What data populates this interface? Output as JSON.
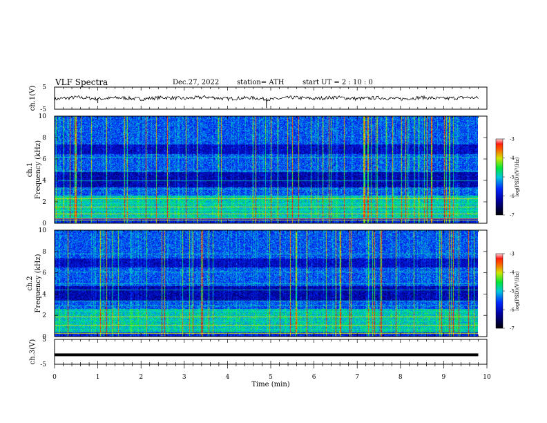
{
  "header": {
    "title": "VLF  Spectra",
    "date": "Dec.27, 2022",
    "station": "station= ATH",
    "start": "start  UT  =   2  : 10 : 0"
  },
  "chart_data": [
    {
      "type": "line",
      "panel": "ch1-waveform",
      "ylabel": "ch.1(V)",
      "ylim": [
        -5,
        5
      ],
      "yticks": [
        "5",
        "-5"
      ],
      "x": [
        0,
        0.5,
        1,
        1.5,
        2,
        2.5,
        3,
        3.5,
        4,
        4.5,
        5,
        5.5,
        6,
        6.5,
        7,
        7.5,
        8,
        8.5,
        9,
        9.5,
        9.8
      ],
      "y": [
        -0.5,
        0.4,
        -0.3,
        0.2,
        -0.4,
        0.3,
        -0.2,
        0.5,
        -0.3,
        0.2,
        -0.6,
        0.3,
        -0.2,
        0.4,
        -0.3,
        0.2,
        -0.4,
        0.3,
        -0.2,
        0.3,
        0.1
      ]
    },
    {
      "type": "heatmap",
      "panel": "ch1-spectrogram",
      "ylabel": "ch.1\nFrequency (kHz)",
      "ylim": [
        0,
        10
      ],
      "yticks": [
        "0",
        "2",
        "4",
        "6",
        "8",
        "10"
      ],
      "colorbar": {
        "label": "log(PSD)(V²/Hz)",
        "range": [
          -7,
          -3
        ],
        "ticks": [
          "-3",
          "-4",
          "-5",
          "-6",
          "-7"
        ]
      }
    },
    {
      "type": "heatmap",
      "panel": "ch2-spectrogram",
      "ylabel": "ch.2\nFrequency (kHz)",
      "ylim": [
        0,
        10
      ],
      "yticks": [
        "0",
        "2",
        "4",
        "6",
        "8",
        "10"
      ],
      "colorbar": {
        "label": "log(PSD)(V²/Hz)",
        "range": [
          -7,
          -3
        ],
        "ticks": [
          "-3",
          "-4",
          "-5",
          "-6",
          "-7"
        ]
      }
    },
    {
      "type": "line",
      "panel": "ch3-waveform",
      "ylabel": "ch.3(V)",
      "ylim": [
        -5,
        5
      ],
      "yticks": [
        "5",
        "-5"
      ],
      "x": [
        0,
        9.8
      ],
      "y": [
        -1.2,
        -1.2
      ]
    }
  ],
  "xaxis": {
    "label": "Time  (min)",
    "ticks": [
      "0",
      "1",
      "2",
      "3",
      "4",
      "5",
      "6",
      "7",
      "8",
      "9",
      "10"
    ],
    "xlim": [
      0,
      10
    ]
  },
  "colors": {
    "low": "#000000",
    "mid_low": "#0000ff",
    "mid": "#00ff00",
    "mid_high": "#ffff00",
    "high": "#ff0000",
    "top": "#ffffff"
  }
}
